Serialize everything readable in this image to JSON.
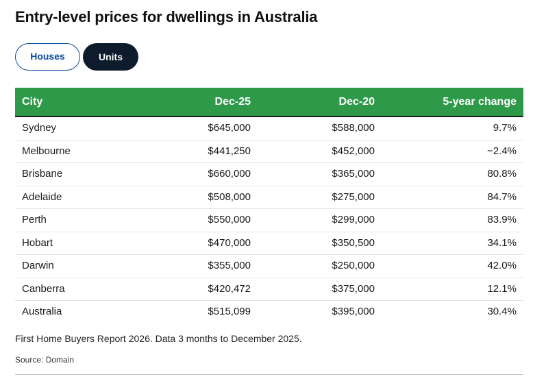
{
  "title": "Entry-level prices for dwellings in Australia",
  "tabs": [
    {
      "label": "Houses",
      "selected": false
    },
    {
      "label": "Units",
      "selected": true
    }
  ],
  "colors": {
    "header_bg": "#2e9a49",
    "active_tab_bg": "#0d1b2d",
    "inactive_tab_border": "#0b4a9c"
  },
  "chart_data": {
    "type": "table",
    "columns": [
      "City",
      "Dec-25",
      "Dec-20",
      "5-year change"
    ],
    "rows": [
      [
        "Sydney",
        "$645,000",
        "$588,000",
        "9.7%"
      ],
      [
        "Melbourne",
        "$441,250",
        "$452,000",
        "−2.4%"
      ],
      [
        "Brisbane",
        "$660,000",
        "$365,000",
        "80.8%"
      ],
      [
        "Adelaide",
        "$508,000",
        "$275,000",
        "84.7%"
      ],
      [
        "Perth",
        "$550,000",
        "$299,000",
        "83.9%"
      ],
      [
        "Hobart",
        "$470,000",
        "$350,500",
        "34.1%"
      ],
      [
        "Darwin",
        "$355,000",
        "$250,000",
        "42.0%"
      ],
      [
        "Canberra",
        "$420,472",
        "$375,000",
        "12.1%"
      ],
      [
        "Australia",
        "$515,099",
        "$395,000",
        "30.4%"
      ]
    ]
  },
  "footnote": "First Home Buyers Report 2026. Data 3 months to December 2025.",
  "source": "Source: Domain"
}
